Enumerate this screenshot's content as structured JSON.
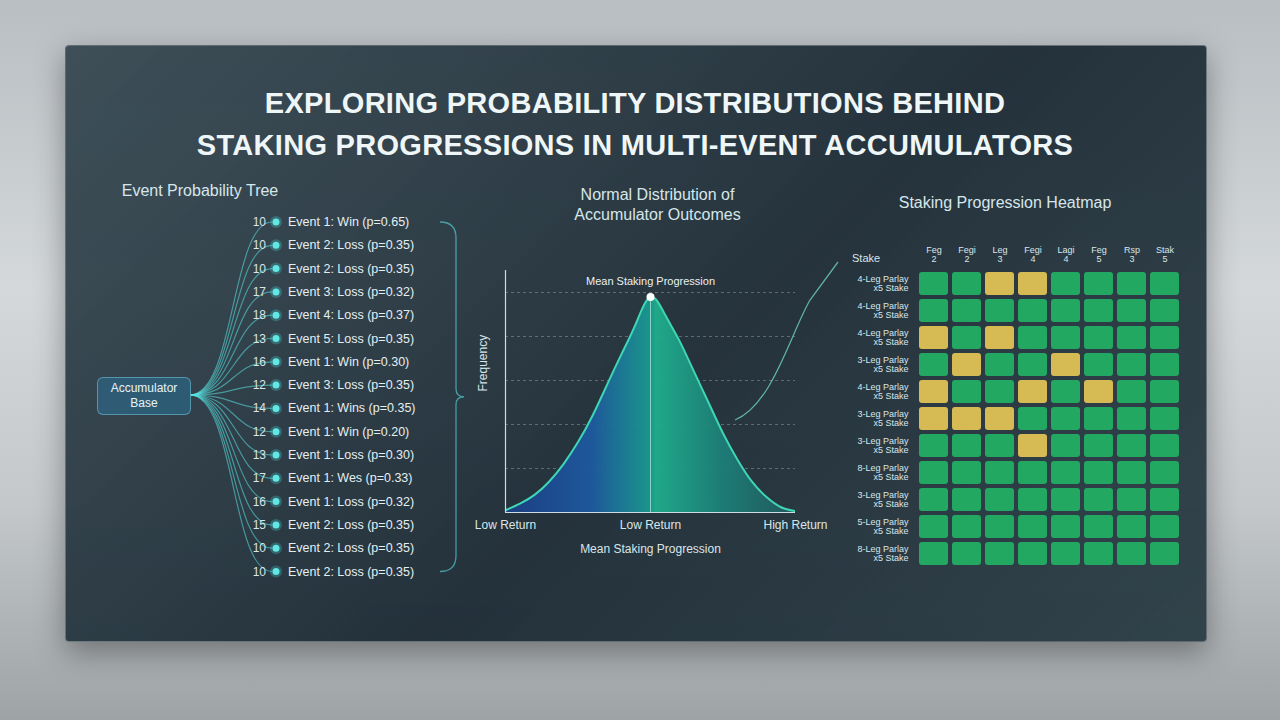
{
  "title": [
    "EXPLORING PROBABILITY DISTRIBUTIONS BEHIND",
    "STAKING PROGRESSIONS IN MULTI-EVENT ACCUMULATORS"
  ],
  "tree": {
    "title": "Event Probability Tree",
    "root": "Accumulator Base",
    "nodes": [
      {
        "number": 10,
        "label": "Event 1: Win (p=0.65)"
      },
      {
        "number": 10,
        "label": "Event 2: Loss (p=0.35)"
      },
      {
        "number": 10,
        "label": "Event 2: Loss (p=0.35)"
      },
      {
        "number": 17,
        "label": "Event 3: Loss (p=0.32)"
      },
      {
        "number": 18,
        "label": "Event 4: Loss (p=0.37)"
      },
      {
        "number": 13,
        "label": "Event 5: Loss (p=0.35)"
      },
      {
        "number": 16,
        "label": "Event 1: Win (p=0.30)"
      },
      {
        "number": 12,
        "label": "Event 3: Loss (p=0.35)"
      },
      {
        "number": 14,
        "label": "Event 1: Wins (p=0.35)"
      },
      {
        "number": 12,
        "label": "Event 1: Win (p=0.20)"
      },
      {
        "number": 13,
        "label": "Event 1: Loss (p=0.30)"
      },
      {
        "number": 17,
        "label": "Event 1: Wes (p=0.33)"
      },
      {
        "number": 16,
        "label": "Event 1: Loss (p=0.32)"
      },
      {
        "number": 15,
        "label": "Event 2: Loss (p=0.35)"
      },
      {
        "number": 10,
        "label": "Event 2: Loss (p=0.35)"
      },
      {
        "number": 10,
        "label": "Event 2: Loss (p=0.35)"
      }
    ]
  },
  "chart_data": [
    {
      "type": "area",
      "title": "Normal Distribution of Accumulator Outcomes",
      "x": [
        0,
        0.5,
        1,
        1.5,
        2,
        2.5,
        3,
        3.5,
        4,
        4.5,
        5,
        5.5,
        6,
        6.5,
        7,
        7.5,
        8,
        8.5,
        9,
        9.5,
        10
      ],
      "values": [
        0.05,
        0.2,
        0.4,
        0.7,
        1.1,
        1.6,
        2.2,
        2.9,
        3.6,
        4.3,
        4.9,
        4.5,
        3.9,
        3.2,
        2.5,
        1.8,
        1.2,
        0.7,
        0.35,
        0.12,
        0.03
      ],
      "color": "#3fd6b4",
      "xlim": [
        0,
        10
      ],
      "xticks": [
        {
          "value": 0,
          "label": "Low Return"
        },
        {
          "value": 5,
          "label": "Low Return"
        },
        {
          "value": 10,
          "label": "High Return"
        }
      ],
      "ylim": [
        0,
        5.5
      ],
      "yticks": [
        1,
        2,
        3,
        4,
        5
      ],
      "grid": true,
      "tick_labels": "x",
      "xlabel": "Mean Staking Progression",
      "ylabel": "Frequency",
      "annotation": "Mean Staking Progression"
    },
    {
      "type": "heatmap",
      "title": "Staking Progression Heatmap",
      "corner_label": "Stake",
      "columns": [
        "Feg 2",
        "Fegi 2",
        "Leg 3",
        "Fegi 4",
        "Lagi 4",
        "Feg 5",
        "Rsp 3",
        "Stak 5"
      ],
      "rows": [
        {
          "label": "4-Leg Parlay",
          "sublabel": "x5 Stake"
        },
        {
          "label": "4-Leg Parlay",
          "sublabel": "x5 Stake"
        },
        {
          "label": "4-Leg Parlay",
          "sublabel": "x5 Stake"
        },
        {
          "label": "3-Leg Parlay",
          "sublabel": "x5 Stake"
        },
        {
          "label": "4-Leg Parlay",
          "sublabel": "x5 Stake"
        },
        {
          "label": "3-Leg Parlay",
          "sublabel": "x5 Stake"
        },
        {
          "label": "3-Leg Parlay",
          "sublabel": "x5 Stake"
        },
        {
          "label": "8-Leg Parlay",
          "sublabel": "x5 Stake"
        },
        {
          "label": "3-Leg Parlay",
          "sublabel": "x5 Stake"
        },
        {
          "label": "5-Leg Parlay",
          "sublabel": "x5 Stake"
        },
        {
          "label": "8-Leg Parlay",
          "sublabel": "x5 Stake"
        }
      ],
      "colors": [
        [
          "#23a862",
          "#23a862",
          "#d6bb55",
          "#d6bb55",
          "#23a862",
          "#23a862",
          "#23a862",
          "#23a862"
        ],
        [
          "#23a862",
          "#23a862",
          "#23a862",
          "#23a862",
          "#23a862",
          "#23a862",
          "#23a862",
          "#23a862"
        ],
        [
          "#d6bb55",
          "#23a862",
          "#d6bb55",
          "#23a862",
          "#23a862",
          "#23a862",
          "#23a862",
          "#23a862"
        ],
        [
          "#23a862",
          "#d6bb55",
          "#23a862",
          "#23a862",
          "#d6bb55",
          "#23a862",
          "#23a862",
          "#23a862"
        ],
        [
          "#d6bb55",
          "#23a862",
          "#23a862",
          "#d6bb55",
          "#23a862",
          "#d6bb55",
          "#23a862",
          "#23a862"
        ],
        [
          "#d6bb55",
          "#d6bb55",
          "#d6bb55",
          "#23a862",
          "#23a862",
          "#23a862",
          "#23a862",
          "#23a862"
        ],
        [
          "#23a862",
          "#23a862",
          "#23a862",
          "#d6bb55",
          "#23a862",
          "#23a862",
          "#23a862",
          "#23a862"
        ],
        [
          "#23a862",
          "#23a862",
          "#23a862",
          "#23a862",
          "#23a862",
          "#23a862",
          "#23a862",
          "#23a862"
        ],
        [
          "#23a862",
          "#23a862",
          "#23a862",
          "#23a862",
          "#23a862",
          "#23a862",
          "#23a862",
          "#23a862"
        ],
        [
          "#23a862",
          "#23a862",
          "#23a862",
          "#23a862",
          "#23a862",
          "#23a862",
          "#23a862",
          "#23a862"
        ],
        [
          "#23a862",
          "#23a862",
          "#23a862",
          "#23a862",
          "#23a862",
          "#23a862",
          "#23a862",
          "#23a862"
        ]
      ]
    }
  ]
}
